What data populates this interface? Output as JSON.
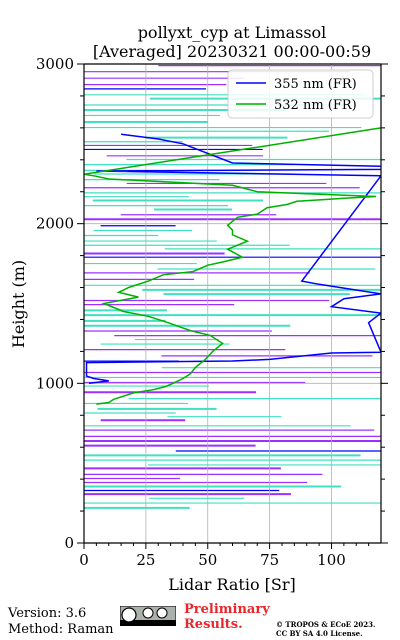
{
  "chart_data": {
    "type": "line",
    "title": "pollyxt_cyp at Limassol",
    "subtitle": "[Averaged] 20230321 00:00-00:59",
    "xlabel": "Lidar Ratio [Sr]",
    "ylabel": "Height (m)",
    "xlim": [
      0,
      120
    ],
    "ylim": [
      0,
      3000
    ],
    "xticks": [
      "0",
      "25",
      "50",
      "75",
      "100"
    ],
    "yticks": [
      "0",
      "1000",
      "2000",
      "3000"
    ],
    "grid": true,
    "legend_position": "top-right",
    "series": [
      {
        "name": "355 nm (FR)",
        "color": "#0000ff",
        "x": [
          2,
          10,
          4,
          1,
          1,
          60,
          75,
          100,
          120,
          115,
          120,
          100,
          105,
          120,
          95,
          88,
          120,
          5,
          120,
          130,
          120,
          60,
          40,
          30,
          15
        ],
        "y": [
          1000,
          1015,
          1030,
          1045,
          1130,
          1140,
          1150,
          1190,
          1195,
          1380,
          1440,
          1480,
          1530,
          1560,
          1620,
          1640,
          2300,
          2330,
          2340,
          2350,
          2360,
          2380,
          2500,
          2530,
          2560
        ]
      },
      {
        "name": "532 nm (FR)",
        "color": "#00b000",
        "x": [
          5,
          10,
          12,
          20,
          28,
          33,
          36,
          40,
          43,
          45,
          49,
          52,
          56,
          51,
          43,
          34,
          26,
          16,
          8,
          15,
          22,
          14,
          18,
          26,
          32,
          44,
          50,
          56,
          64,
          58,
          66,
          60,
          60,
          58,
          62,
          70,
          74,
          82,
          86,
          96,
          106,
          118,
          70,
          60,
          10,
          4,
          0,
          120,
          130
        ],
        "y": [
          870,
          880,
          900,
          940,
          960,
          980,
          1000,
          1030,
          1060,
          1100,
          1150,
          1200,
          1250,
          1300,
          1330,
          1380,
          1420,
          1450,
          1500,
          1520,
          1540,
          1570,
          1600,
          1640,
          1680,
          1700,
          1740,
          1760,
          1790,
          1840,
          1890,
          1930,
          1960,
          1990,
          2040,
          2060,
          2100,
          2120,
          2140,
          2150,
          2160,
          2170,
          2200,
          2240,
          2280,
          2300,
          2310,
          2600,
          2800
        ]
      }
    ]
  },
  "footer": {
    "version": "Version: 3.6",
    "method": "Method: Raman",
    "preliminary_line1": "Preliminary",
    "preliminary_line2": "Results.",
    "credit_line1": "© TROPOS & ECoE 2023.",
    "credit_line2": "CC BY SA 4.0 License."
  },
  "colors": {
    "noise_cyan": "#40e0c0",
    "noise_purple": "#9b30ff",
    "noise_blue": "#0000ff",
    "grid": "#b0b0b0"
  }
}
